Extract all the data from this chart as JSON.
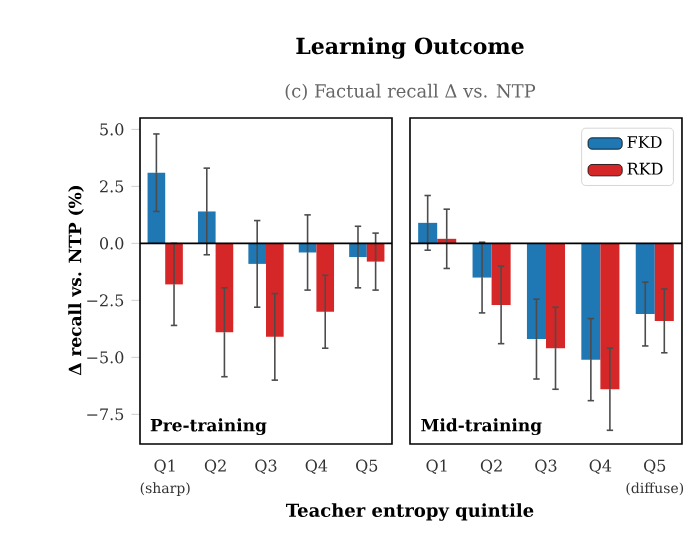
{
  "chart_data": [
    {
      "type": "bar",
      "title": "Learning Outcome",
      "subtitle": "(c) Factual recall Δ vs. NTP",
      "xlabel": "Teacher entropy quintile",
      "ylabel": "Δ recall vs. NTP (%)",
      "categories": [
        "Q1",
        "Q2",
        "Q3",
        "Q4",
        "Q5"
      ],
      "series": [
        {
          "color": "#1f77b4",
          "values": [
            3.1,
            1.4,
            -0.9,
            -0.4,
            -0.6
          ],
          "errors": [
            1.7,
            1.9,
            1.9,
            1.65,
            1.35
          ]
        },
        {
          "color": "#d62728",
          "values": [
            -1.8,
            -3.9,
            -4.1,
            -3.0,
            -0.8
          ],
          "errors": [
            1.8,
            1.95,
            1.9,
            1.6,
            1.25
          ]
        }
      ],
      "ylim": [
        -8.8,
        5.5
      ],
      "yticks": [
        {
          "value": 5,
          "label": "5.0"
        },
        {
          "value": 2.5,
          "label": "2.5"
        },
        {
          "value": 0,
          "label": "0.0"
        },
        {
          "value": -2.5,
          "label": "−2.5"
        },
        {
          "value": -5,
          "label": "−5.0"
        },
        {
          "value": -7.5,
          "label": "−7.5"
        }
      ],
      "ref_lines": [
        {
          "axis": "y",
          "value": 0
        }
      ],
      "annotations": [
        "Pre-training",
        "(sharp)"
      ]
    },
    {
      "type": "bar",
      "categories": [
        "Q1",
        "Q2",
        "Q3",
        "Q4",
        "Q5"
      ],
      "series": [
        {
          "name": "FKD",
          "color": "#1f77b4",
          "values": [
            0.9,
            -1.5,
            -4.2,
            -5.1,
            -3.1
          ],
          "errors": [
            1.2,
            1.55,
            1.75,
            1.8,
            1.4
          ]
        },
        {
          "name": "RKD",
          "color": "#d62728",
          "values": [
            0.2,
            -2.7,
            -4.6,
            -6.4,
            -3.4
          ],
          "errors": [
            1.3,
            1.7,
            1.8,
            1.8,
            1.4
          ]
        }
      ],
      "ylim": [
        -8.8,
        5.5
      ],
      "yticks": [
        {
          "value": 5,
          "label": null
        },
        {
          "value": 2.5,
          "label": null
        },
        {
          "value": 0,
          "label": null
        },
        {
          "value": -2.5,
          "label": null
        },
        {
          "value": -5,
          "label": null
        },
        {
          "value": -7.5,
          "label": null
        }
      ],
      "tick_labels": "x",
      "legend": "top right",
      "ref_lines": [
        {
          "axis": "y",
          "value": 0
        }
      ],
      "annotations": [
        "Mid-training",
        "(diffuse)"
      ]
    }
  ]
}
